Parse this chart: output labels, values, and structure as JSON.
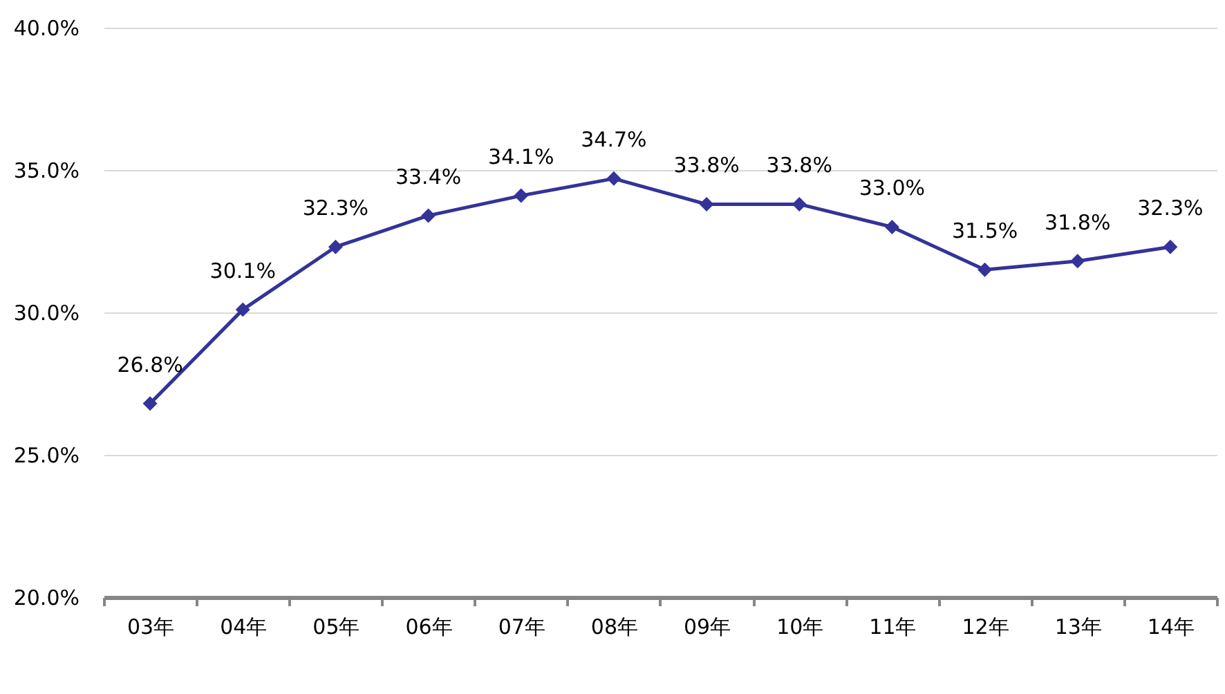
{
  "chart_data": {
    "type": "line",
    "categories": [
      "03年",
      "04年",
      "05年",
      "06年",
      "07年",
      "08年",
      "09年",
      "10年",
      "11年",
      "12年",
      "13年",
      "14年"
    ],
    "series": [
      {
        "color": "#333399",
        "values": [
          26.8,
          30.1,
          32.3,
          33.4,
          34.1,
          34.7,
          33.8,
          33.8,
          33.0,
          31.5,
          31.8,
          32.3
        ],
        "value_labels": [
          "26.8%",
          "30.1%",
          "32.3%",
          "33.4%",
          "34.1%",
          "34.7%",
          "33.8%",
          "33.8%",
          "33.0%",
          "31.5%",
          "31.8%",
          "32.3%"
        ]
      }
    ],
    "ylim": [
      20,
      40
    ],
    "yticks": [
      {
        "value": 20,
        "label": "20.0%"
      },
      {
        "value": 25,
        "label": "25.0%"
      },
      {
        "value": 30,
        "label": "30.0%"
      },
      {
        "value": 35,
        "label": "35.0%"
      },
      {
        "value": 40,
        "label": "40.0%"
      }
    ],
    "grid": "y",
    "marker": "diamond",
    "line_style": "solid"
  }
}
